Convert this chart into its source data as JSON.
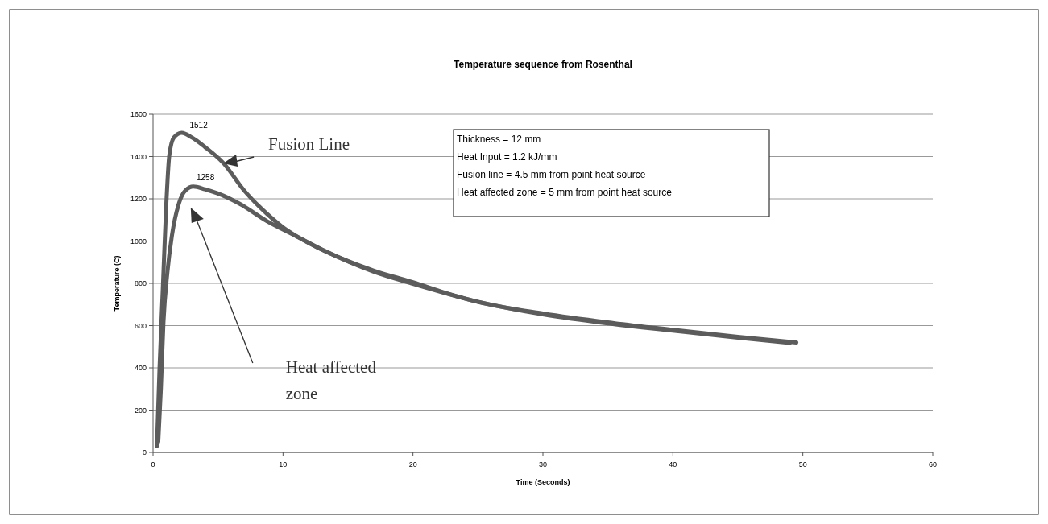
{
  "chart_data": {
    "type": "line",
    "title": "Temperature sequence from Rosenthal",
    "xlabel": "Time (Seconds)",
    "ylabel": "Temperature (C)",
    "xlim": [
      0,
      60
    ],
    "xticks": [
      0,
      10,
      20,
      30,
      40,
      50,
      60
    ],
    "ylim": [
      0,
      1600
    ],
    "yticks": [
      0,
      200,
      400,
      600,
      800,
      1000,
      1200,
      1400,
      1600
    ],
    "grid": "y",
    "marker": "none",
    "line_style": "solid",
    "series": [
      {
        "color": "#5c5c5c",
        "x": [
          0.3,
          0.5,
          0.75,
          1,
          1.25,
          1.6,
          2.2,
          3,
          4,
          5.4,
          7,
          8.75,
          10,
          12,
          15,
          17,
          20,
          22.5,
          25,
          30,
          35,
          40,
          45,
          49.5
        ],
        "values": [
          30,
          400,
          770,
          1150,
          1405,
          1490,
          1512,
          1490,
          1445,
          1370,
          1240,
          1130,
          1065,
          990,
          905,
          860,
          805,
          755,
          712,
          657,
          615,
          580,
          547,
          520
        ]
      },
      {
        "color": "#5c5c5c",
        "x": [
          0.4,
          0.6,
          0.8,
          1.1,
          1.45,
          2,
          2.5,
          3.1,
          4,
          5,
          6.7,
          8.75,
          10.8,
          13,
          17,
          20,
          25,
          30,
          35,
          40,
          45,
          49
        ],
        "values": [
          50,
          300,
          617,
          850,
          1025,
          1180,
          1240,
          1258,
          1245,
          1225,
          1175,
          1095,
          1030,
          960,
          855,
          798,
          713,
          653,
          610,
          576,
          543,
          518
        ]
      }
    ],
    "annotations": [
      {
        "text": "1512",
        "x": 2.2,
        "y": 1512
      },
      {
        "text": "1258",
        "x": 3.1,
        "y": 1258
      },
      {
        "text": "Fusion Line",
        "x": 5.4,
        "y": 1368
      },
      "Heat affected zone",
      "Thickness = 12 mm",
      "Heat Input = 1.2 kJ/mm",
      "Fusion line = 4.5 mm from point heat source",
      "Heat affected zone = 5 mm from point heat source"
    ]
  }
}
